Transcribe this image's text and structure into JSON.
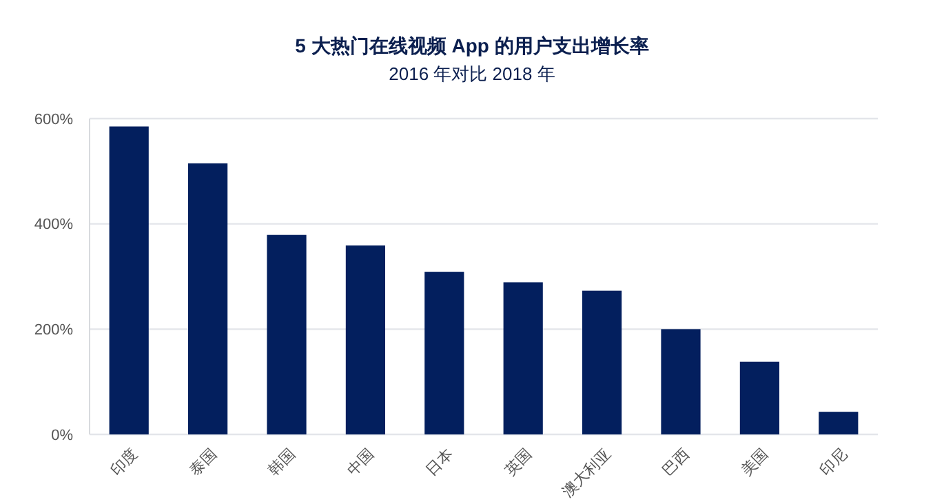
{
  "chart_data": {
    "type": "bar",
    "title": "5 大热门在线视频 App 的用户支出增长率",
    "subtitle": "2016 年对比 2018 年",
    "categories": [
      "印度",
      "泰国",
      "韩国",
      "中国",
      "日本",
      "英国",
      "澳大利亚",
      "巴西",
      "美国",
      "印尼"
    ],
    "values": [
      585,
      515,
      379,
      359,
      309,
      289,
      273,
      200,
      138,
      43
    ],
    "color": "#031f5e",
    "ylim": [
      0,
      600
    ],
    "yticks": [
      {
        "value": 0,
        "label": "0%"
      },
      {
        "value": 200,
        "label": "200%"
      },
      {
        "value": 400,
        "label": "400%"
      },
      {
        "value": 600,
        "label": "600%"
      }
    ],
    "grid": "y"
  }
}
